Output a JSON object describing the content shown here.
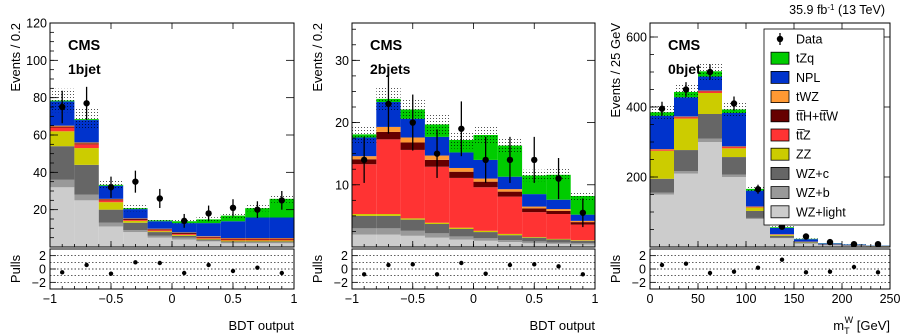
{
  "header": {
    "lumi": "35.9 fb",
    "lumi_sup": "-1",
    "energy": " (13 TeV)"
  },
  "legend": {
    "entries": [
      {
        "label": "Data",
        "type": "data"
      },
      {
        "label": "tZq",
        "color": "#00cc00"
      },
      {
        "label": "NPL",
        "color": "#0033cc"
      },
      {
        "label": "tWZ",
        "color": "#ff9933"
      },
      {
        "label": "tt̅H+tt̅W",
        "color": "#660000"
      },
      {
        "label": "tt̅Z",
        "color": "#ff3333"
      },
      {
        "label": "ZZ",
        "color": "#cccc00"
      },
      {
        "label": "WZ+c",
        "color": "#666666"
      },
      {
        "label": "WZ+b",
        "color": "#999999"
      },
      {
        "label": "WZ+light",
        "color": "#cccccc"
      }
    ]
  },
  "chart_data": [
    {
      "type": "bar",
      "stacked": true,
      "experiment": "CMS",
      "category": "1bjet",
      "xlabel": "BDT output",
      "ylabel": "Events / 0.2",
      "pulls_label": "Pulls",
      "xlim": [
        -1,
        1
      ],
      "ylim": [
        0,
        120
      ],
      "yticks": [
        20,
        40,
        60,
        80,
        100,
        120
      ],
      "xticks": [
        -1,
        -0.5,
        0,
        0.5,
        1
      ],
      "xtick_labels": [
        "−1",
        "−0.5",
        "0",
        "0.5",
        "1"
      ],
      "pulls_ylim": [
        -3,
        3
      ],
      "pulls_yticks": [
        -2,
        0,
        2
      ],
      "pulls_ytick_labels": [
        "−2",
        "0",
        "2"
      ],
      "bin_edges": [
        -1,
        -0.8,
        -0.6,
        -0.4,
        -0.2,
        0,
        0.2,
        0.4,
        0.6,
        0.8,
        1
      ],
      "series": [
        {
          "name": "WZ+light",
          "color": "#cccccc",
          "values": [
            32,
            25,
            11,
            8,
            5,
            4,
            3,
            2,
            2,
            2
          ]
        },
        {
          "name": "WZ+b",
          "color": "#999999",
          "values": [
            4,
            3,
            2,
            1,
            1,
            1,
            0.5,
            0.5,
            0.5,
            0.5
          ]
        },
        {
          "name": "WZ+c",
          "color": "#666666",
          "values": [
            18,
            16,
            7,
            4,
            2,
            1,
            0.5,
            0.5,
            0.5,
            0.5
          ]
        },
        {
          "name": "ZZ",
          "color": "#cccc00",
          "values": [
            8,
            9,
            4,
            1,
            0.5,
            0.5,
            0.5,
            0.5,
            0.5,
            0.5
          ]
        },
        {
          "name": "tt̅Z",
          "color": "#ff3333",
          "values": [
            2,
            2,
            1,
            0.5,
            0.5,
            0.5,
            0.5,
            0.5,
            0.5,
            0.5
          ]
        },
        {
          "name": "tt̅H+tt̅W",
          "color": "#660000",
          "values": [
            0.5,
            0.5,
            0.5,
            0.5,
            0.5,
            0.5,
            0.5,
            0.5,
            0.5,
            0.5
          ]
        },
        {
          "name": "tWZ",
          "color": "#ff9933",
          "values": [
            0.5,
            0.5,
            0.3,
            0.3,
            0.3,
            0.3,
            0.3,
            0.3,
            0.3,
            0.3
          ]
        },
        {
          "name": "NPL",
          "color": "#0033cc",
          "values": [
            13,
            12,
            7,
            5,
            4,
            5,
            7,
            9,
            11,
            11
          ]
        },
        {
          "name": "tZq",
          "color": "#00cc00",
          "values": [
            0.5,
            0.5,
            0.5,
            0.5,
            0.5,
            1,
            2,
            3,
            5,
            10
          ]
        }
      ],
      "uncertainty_frac": 0.08,
      "data": {
        "y": [
          75,
          77,
          32,
          35,
          26,
          14,
          18,
          21,
          20,
          25
        ],
        "err": [
          8.7,
          8.8,
          5.7,
          5.9,
          5.1,
          3.7,
          4.2,
          4.6,
          4.5,
          5.0
        ]
      },
      "pulls": [
        -0.5,
        0.6,
        -0.7,
        1.0,
        0.9,
        -0.6,
        0.6,
        -0.3,
        0.2,
        -0.6
      ]
    },
    {
      "type": "bar",
      "stacked": true,
      "experiment": "CMS",
      "category": "2bjets",
      "xlabel": "BDT output",
      "ylabel": "Events / 0.2",
      "pulls_label": "Pulls",
      "xlim": [
        -1,
        1
      ],
      "ylim": [
        0,
        36
      ],
      "yticks": [
        10,
        20,
        30
      ],
      "xticks": [
        -1,
        -0.5,
        0,
        0.5,
        1
      ],
      "xtick_labels": [
        "−1",
        "−0.5",
        "0",
        "0.5",
        "1"
      ],
      "pulls_ylim": [
        -3,
        3
      ],
      "pulls_yticks": [
        -2,
        0,
        2
      ],
      "pulls_ytick_labels": [
        "−2",
        "0",
        "2"
      ],
      "bin_edges": [
        -1,
        -0.8,
        -0.6,
        -0.4,
        -0.2,
        0,
        0.2,
        0.4,
        0.6,
        0.8,
        1
      ],
      "series": [
        {
          "name": "WZ+light",
          "color": "#cccccc",
          "values": [
            2,
            2,
            1.8,
            1.5,
            1.2,
            1,
            0.8,
            0.6,
            0.5,
            0.4
          ]
        },
        {
          "name": "WZ+b",
          "color": "#999999",
          "values": [
            1,
            1,
            0.8,
            0.7,
            0.5,
            0.4,
            0.3,
            0.3,
            0.2,
            0.2
          ]
        },
        {
          "name": "WZ+c",
          "color": "#666666",
          "values": [
            2,
            2,
            1.8,
            1.5,
            1.2,
            1,
            0.8,
            0.6,
            0.5,
            0.4
          ]
        },
        {
          "name": "ZZ",
          "color": "#cccc00",
          "values": [
            0.3,
            0.3,
            0.2,
            0.2,
            0.2,
            0.2,
            0.2,
            0.1,
            0.1,
            0.1
          ]
        },
        {
          "name": "tt̅Z",
          "color": "#ff3333",
          "values": [
            8,
            12,
            11,
            9,
            8,
            7,
            6,
            4,
            4,
            2.5
          ]
        },
        {
          "name": "tt̅H+tt̅W",
          "color": "#660000",
          "values": [
            0.8,
            1.2,
            1.2,
            1.1,
            1,
            0.9,
            0.8,
            0.6,
            0.5,
            0.4
          ]
        },
        {
          "name": "tWZ",
          "color": "#ff9933",
          "values": [
            0.5,
            0.8,
            0.8,
            0.7,
            0.6,
            0.5,
            0.4,
            0.3,
            0.3,
            0.2
          ]
        },
        {
          "name": "NPL",
          "color": "#0033cc",
          "values": [
            3,
            4,
            3,
            3,
            2.5,
            3,
            2,
            2,
            1.5,
            1
          ]
        },
        {
          "name": "tZq",
          "color": "#00cc00",
          "values": [
            0.5,
            0.5,
            1.5,
            2,
            2,
            4,
            5,
            3,
            4,
            3
          ]
        }
      ],
      "uncertainty_frac": 0.08,
      "data": {
        "y": [
          14,
          23,
          20,
          15,
          19,
          14,
          14,
          14,
          11,
          5.5
        ],
        "err": [
          3.7,
          4.8,
          4.5,
          3.9,
          4.4,
          3.7,
          3.7,
          3.7,
          3.3,
          2.3
        ]
      },
      "pulls": [
        -0.8,
        0.6,
        0.7,
        -0.8,
        0.9,
        -0.7,
        0.6,
        0.7,
        0.4,
        -0.8
      ]
    },
    {
      "type": "bar",
      "stacked": true,
      "experiment": "CMS",
      "category": "0bjet",
      "xlabel_main": "m",
      "xlabel_sub": "T",
      "xlabel_sup": "W",
      "xlabel_unit": " [GeV]",
      "ylabel": "Events / 25 GeV",
      "pulls_label": "Pulls",
      "xlim": [
        0,
        250
      ],
      "ylim": [
        0,
        640
      ],
      "yticks": [
        200,
        400,
        600
      ],
      "xticks": [
        0,
        50,
        100,
        150,
        200,
        250
      ],
      "xtick_labels": [
        "0",
        "50",
        "100",
        "150",
        "200",
        "250"
      ],
      "pulls_ylim": [
        -3,
        3
      ],
      "pulls_yticks": [
        -2,
        0,
        2
      ],
      "pulls_ytick_labels": [
        "−2",
        "0",
        "2"
      ],
      "bin_edges": [
        0,
        25,
        50,
        75,
        100,
        125,
        150,
        175,
        200,
        225,
        250
      ],
      "series": [
        {
          "name": "WZ+light",
          "color": "#cccccc",
          "values": [
            150,
            210,
            300,
            200,
            80,
            25,
            10,
            5,
            3,
            2
          ]
        },
        {
          "name": "WZ+b",
          "color": "#999999",
          "values": [
            5,
            7,
            10,
            7,
            3,
            1,
            0.5,
            0.3,
            0.2,
            0.1
          ]
        },
        {
          "name": "WZ+c",
          "color": "#666666",
          "values": [
            40,
            60,
            70,
            50,
            20,
            6,
            3,
            1,
            1,
            0.5
          ]
        },
        {
          "name": "ZZ",
          "color": "#cccc00",
          "values": [
            80,
            90,
            60,
            25,
            10,
            3,
            1,
            0.5,
            0.5,
            0.2
          ]
        },
        {
          "name": "tt̅Z",
          "color": "#ff3333",
          "values": [
            3,
            4,
            5,
            4,
            2,
            1,
            0.5,
            0.3,
            0.2,
            0.1
          ]
        },
        {
          "name": "tt̅H+tt̅W",
          "color": "#660000",
          "values": [
            1,
            1,
            1,
            1,
            0.5,
            0.3,
            0.2,
            0.1,
            0.1,
            0.1
          ]
        },
        {
          "name": "tWZ",
          "color": "#ff9933",
          "values": [
            1,
            1,
            1,
            1,
            0.5,
            0.3,
            0.2,
            0.1,
            0.1,
            0.1
          ]
        },
        {
          "name": "NPL",
          "color": "#0033cc",
          "values": [
            95,
            55,
            40,
            95,
            45,
            18,
            7,
            3,
            2,
            1
          ]
        },
        {
          "name": "tZq",
          "color": "#00cc00",
          "values": [
            10,
            15,
            15,
            10,
            5,
            2,
            1,
            0.5,
            0.3,
            0.2
          ]
        }
      ],
      "uncertainty_frac": 0.05,
      "data": {
        "y": [
          395,
          450,
          500,
          410,
          165,
          58,
          30,
          14,
          8,
          8
        ],
        "err": [
          20,
          21,
          22,
          20,
          13,
          7.6,
          5.5,
          3.7,
          2.8,
          2.8
        ]
      },
      "pulls": [
        0.6,
        0.8,
        -0.6,
        -0.4,
        0.2,
        1.4,
        -0.5,
        -0.4,
        0.3,
        -0.5
      ]
    }
  ]
}
